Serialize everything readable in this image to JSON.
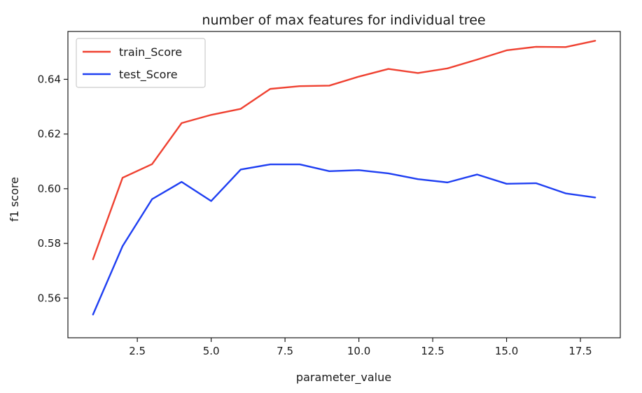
{
  "chart_data": {
    "type": "line",
    "title": "number of max features for individual tree",
    "xlabel": "parameter_value",
    "ylabel": "f1 score",
    "xlim": [
      0.15,
      18.85
    ],
    "ylim": [
      0.5455,
      0.6575
    ],
    "xticks": [
      2.5,
      5.0,
      7.5,
      10.0,
      12.5,
      15.0,
      17.5
    ],
    "xtick_labels": [
      "2.5",
      "5.0",
      "7.5",
      "10.0",
      "12.5",
      "15.0",
      "17.5"
    ],
    "yticks": [
      0.56,
      0.58,
      0.6,
      0.62,
      0.64
    ],
    "ytick_labels": [
      "0.56",
      "0.58",
      "0.60",
      "0.62",
      "0.64"
    ],
    "grid": false,
    "legend_position": "top-left",
    "x": [
      1,
      2,
      3,
      4,
      5,
      6,
      7,
      8,
      9,
      10,
      11,
      12,
      13,
      14,
      15,
      16,
      17,
      18
    ],
    "series": [
      {
        "name": "train_Score",
        "color": "#ef4131",
        "values": [
          0.5742,
          0.604,
          0.609,
          0.624,
          0.627,
          0.6292,
          0.6365,
          0.6375,
          0.6377,
          0.641,
          0.6438,
          0.6423,
          0.644,
          0.6472,
          0.6506,
          0.6519,
          0.6518,
          0.6541
        ]
      },
      {
        "name": "test_Score",
        "color": "#1f3ff2",
        "values": [
          0.554,
          0.579,
          0.5962,
          0.6025,
          0.5955,
          0.607,
          0.6089,
          0.6089,
          0.6064,
          0.6068,
          0.6056,
          0.6035,
          0.6023,
          0.6052,
          0.6018,
          0.602,
          0.5983,
          0.5968
        ]
      }
    ]
  }
}
